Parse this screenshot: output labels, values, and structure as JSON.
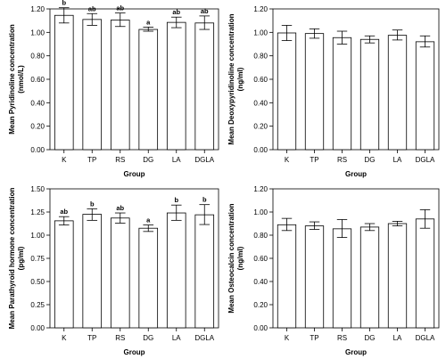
{
  "chart_data": [
    {
      "type": "bar",
      "panel": "top-left",
      "title": "",
      "xlabel": "Group",
      "ylabel": [
        "Mean Pyridinoline concentration",
        "(nmol/L)"
      ],
      "categories": [
        "K",
        "TP",
        "RS",
        "DG",
        "LA",
        "DGLA"
      ],
      "values": [
        1.145,
        1.11,
        1.105,
        1.025,
        1.085,
        1.08
      ],
      "error_low": [
        1.08,
        1.06,
        1.05,
        1.01,
        1.04,
        1.025
      ],
      "error_high": [
        1.21,
        1.16,
        1.165,
        1.045,
        1.13,
        1.14
      ],
      "significance": [
        "b",
        "ab",
        "ab",
        "a",
        "ab",
        "ab"
      ],
      "ylim": [
        0.0,
        1.2
      ],
      "yticks": [
        "0.00",
        "0.20",
        "0.40",
        "0.60",
        "0.80",
        "1.00",
        "1.20"
      ],
      "ytick_values": [
        0,
        0.2,
        0.4,
        0.6,
        0.8,
        1.0,
        1.2
      ],
      "grid": false
    },
    {
      "type": "bar",
      "panel": "top-right",
      "title": "",
      "xlabel": "Group",
      "ylabel": [
        "Mean Deoxypyridinoline concentration",
        "(ng/ml)"
      ],
      "categories": [
        "K",
        "TP",
        "RS",
        "DG",
        "LA",
        "DGLA"
      ],
      "values": [
        0.995,
        0.99,
        0.955,
        0.94,
        0.975,
        0.92
      ],
      "error_low": [
        0.93,
        0.95,
        0.9,
        0.91,
        0.935,
        0.875
      ],
      "error_high": [
        1.06,
        1.03,
        1.01,
        0.97,
        1.02,
        0.97
      ],
      "significance": [],
      "ylim": [
        0.0,
        1.2
      ],
      "yticks": [
        "0.00",
        "0.20",
        "0.40",
        "0.60",
        "0.80",
        "1.00",
        "1.20"
      ],
      "ytick_values": [
        0,
        0.2,
        0.4,
        0.6,
        0.8,
        1.0,
        1.2
      ],
      "grid": false
    },
    {
      "type": "bar",
      "panel": "bottom-left",
      "title": "",
      "xlabel": "Group",
      "ylabel": [
        "Mean Parathyroid hormone concentration",
        "(pg/ml)"
      ],
      "categories": [
        "K",
        "TP",
        "RS",
        "DG",
        "LA",
        "DGLA"
      ],
      "values": [
        1.155,
        1.225,
        1.185,
        1.075,
        1.24,
        1.22
      ],
      "error_low": [
        1.11,
        1.16,
        1.13,
        1.04,
        1.16,
        1.115
      ],
      "error_high": [
        1.2,
        1.285,
        1.24,
        1.11,
        1.325,
        1.33
      ],
      "significance": [
        "ab",
        "b",
        "ab",
        "a",
        "b",
        "b"
      ],
      "ylim": [
        0.0,
        1.5
      ],
      "yticks": [
        "0.00",
        "0.25",
        "0.50",
        "0.75",
        "1.00",
        "1.25",
        "1.50"
      ],
      "ytick_values": [
        0,
        0.25,
        0.5,
        0.75,
        1.0,
        1.25,
        1.5
      ],
      "grid": false
    },
    {
      "type": "bar",
      "panel": "bottom-right",
      "title": "",
      "xlabel": "Group",
      "ylabel": [
        "Mean Osteocalcin concentration",
        "(ng/ml)"
      ],
      "categories": [
        "K",
        "TP",
        "RS",
        "DG",
        "LA",
        "DGLA"
      ],
      "values": [
        0.89,
        0.88,
        0.855,
        0.87,
        0.9,
        0.94
      ],
      "error_low": [
        0.84,
        0.85,
        0.78,
        0.84,
        0.88,
        0.86
      ],
      "error_high": [
        0.945,
        0.915,
        0.935,
        0.9,
        0.92,
        1.02
      ],
      "significance": [],
      "ylim": [
        0.0,
        1.2
      ],
      "yticks": [
        "0.00",
        "0.20",
        "0.40",
        "0.60",
        "0.80",
        "1.00",
        "1.20"
      ],
      "ytick_values": [
        0,
        0.2,
        0.4,
        0.6,
        0.8,
        1.0,
        1.2
      ],
      "grid": false
    }
  ]
}
